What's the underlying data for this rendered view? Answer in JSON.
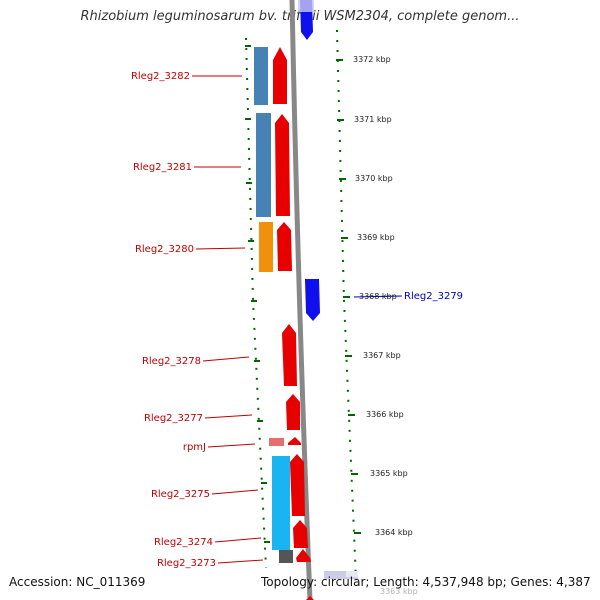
{
  "title": "Rhizobium leguminosarum bv. trifolii WSM2304, complete genom...",
  "footer": {
    "accession": "Accession: NC_011369",
    "summary": "Topology: circular; Length: 4,537,948 bp; Genes: 4,387"
  },
  "colors": {
    "forward": "#e60000",
    "reverse": "#0000ee",
    "tick": "#006600",
    "backbone": "#888888"
  },
  "ticks": [
    "3372 kbp",
    "3371 kbp",
    "3370 kbp",
    "3369 kbp",
    "3368 kbp",
    "3367 kbp",
    "3366 kbp",
    "3365 kbp",
    "3364 kbp",
    "3363 kbp"
  ],
  "genes": [
    "Rleg2_3282",
    "Rleg2_3281",
    "Rleg2_3280",
    "Rleg2_3279",
    "Rleg2_3278",
    "Rleg2_3277",
    "rpmJ",
    "Rleg2_3275",
    "Rleg2_3274",
    "Rleg2_3273"
  ]
}
